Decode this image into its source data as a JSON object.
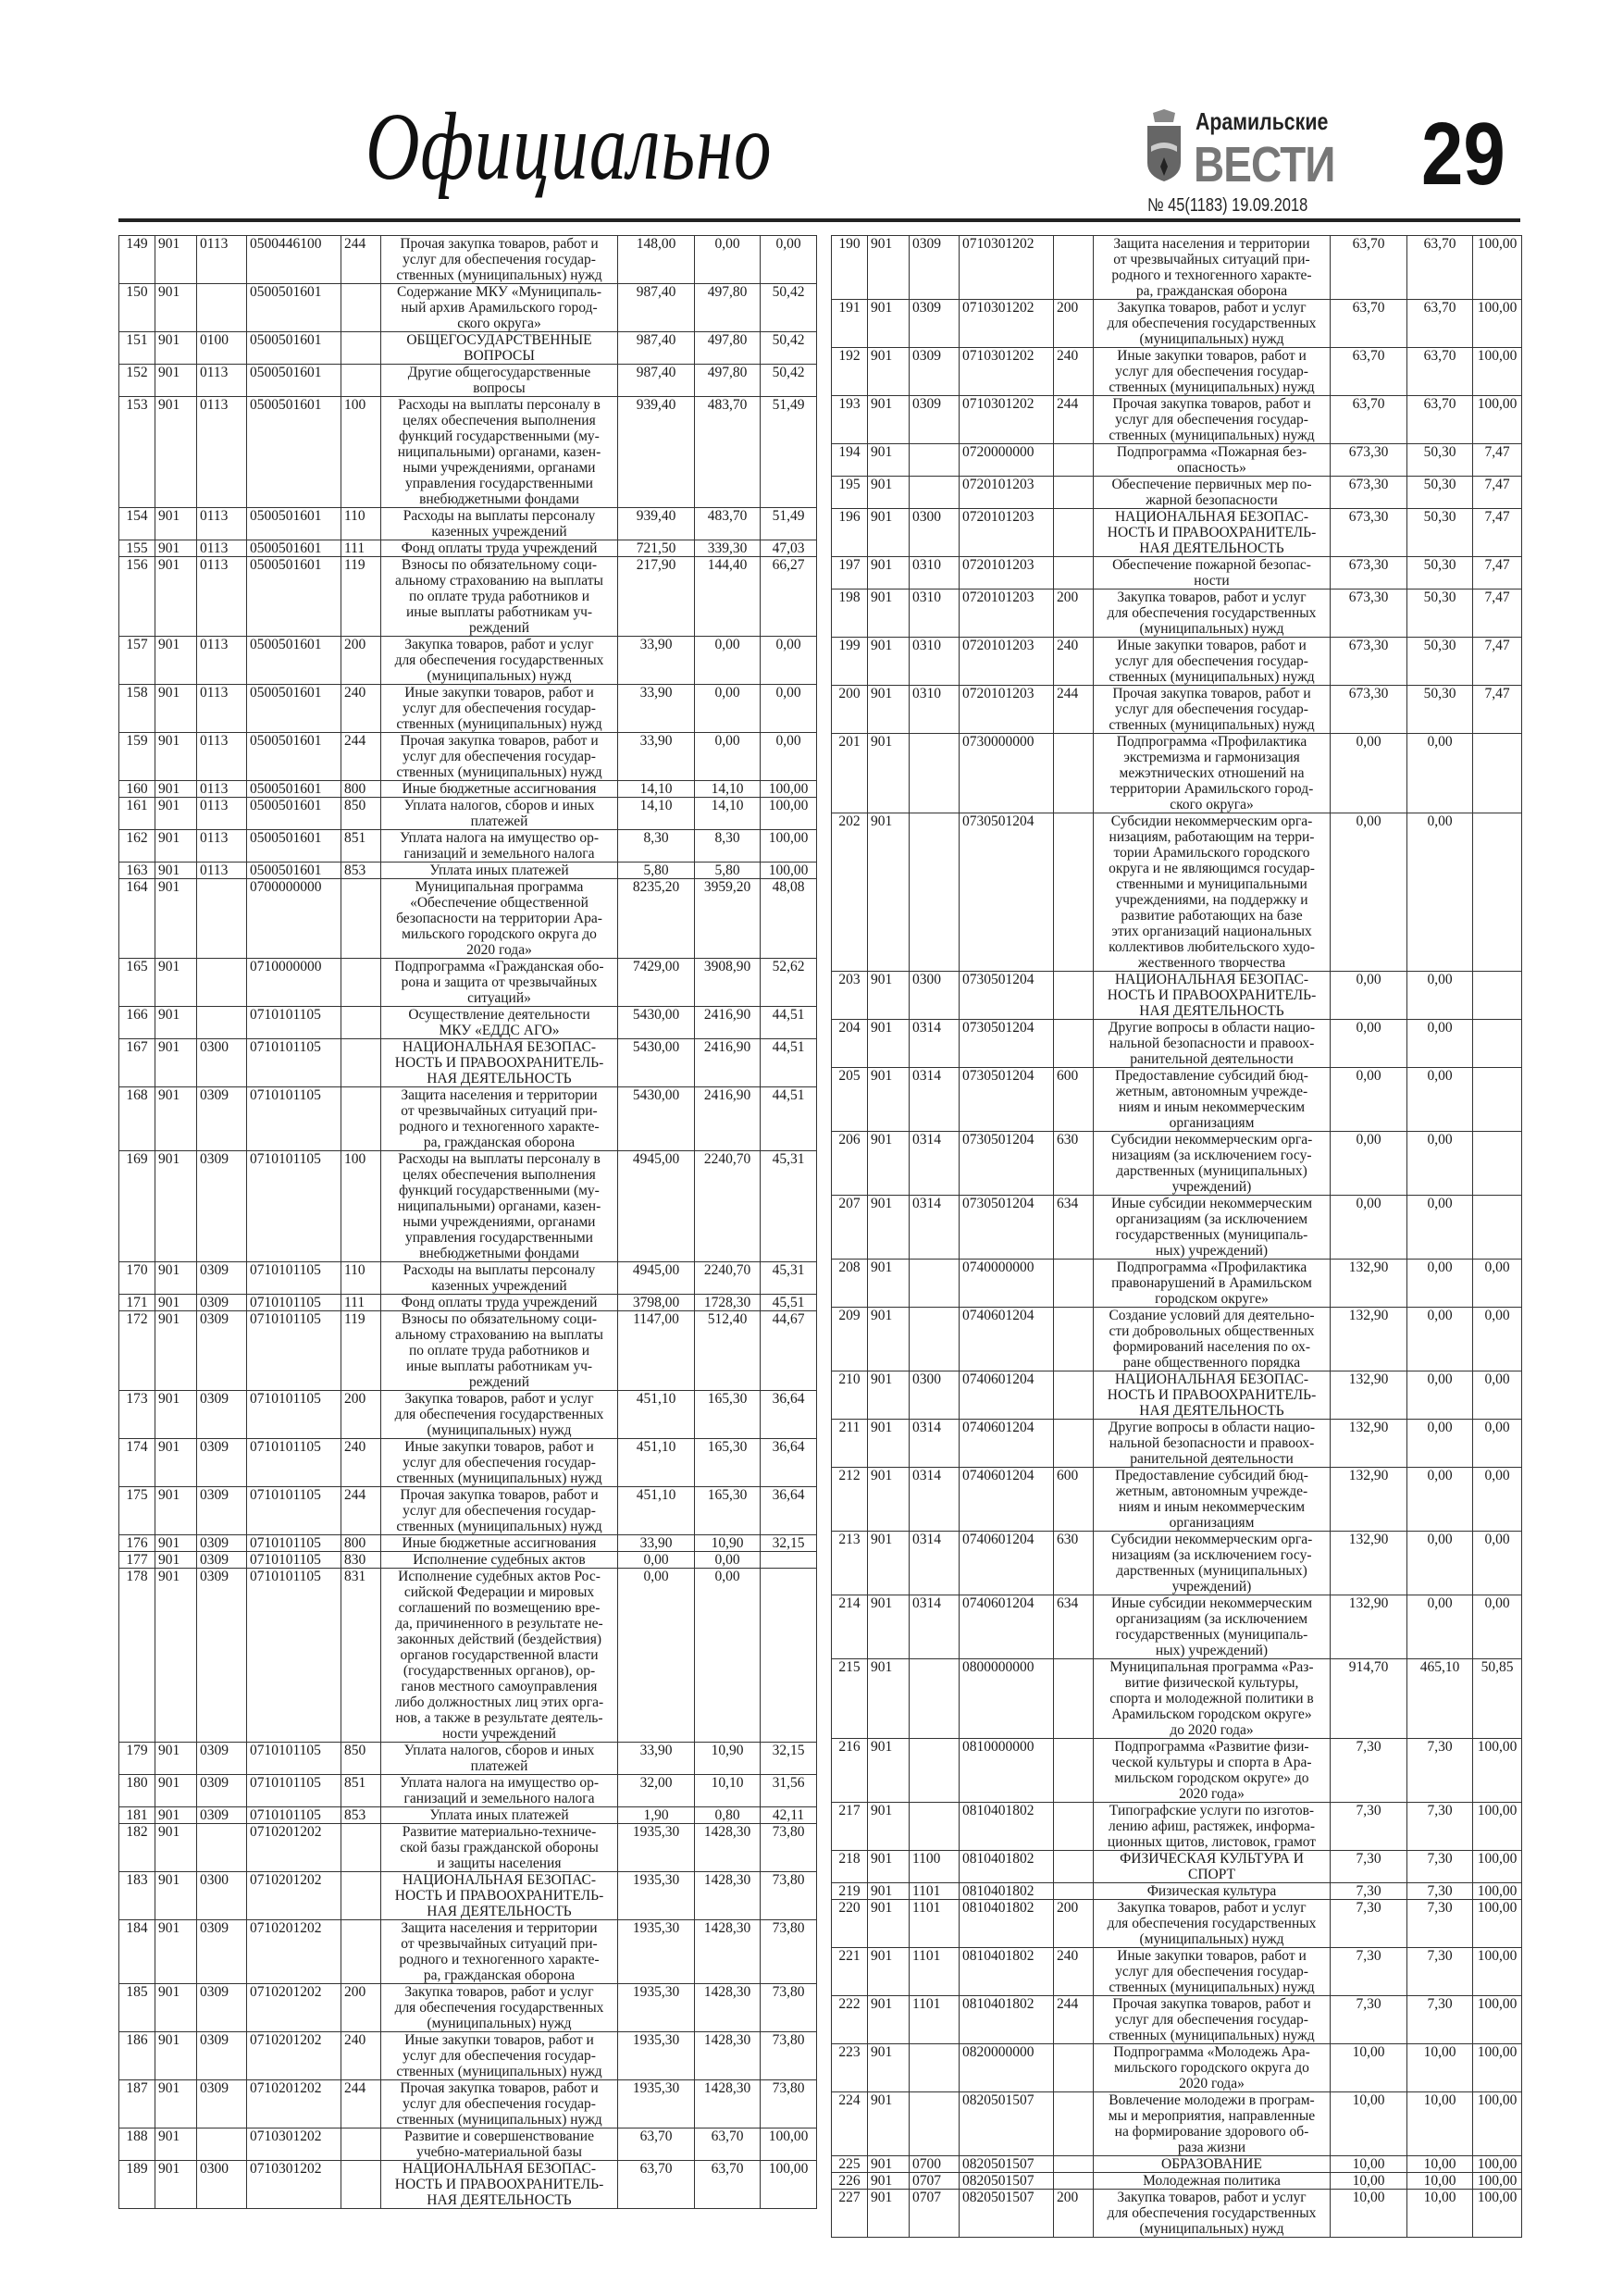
{
  "header": {
    "section_title": "Официально",
    "logo_top": "Арамильские",
    "logo_main": "ВЕСТИ",
    "issue": "№ 45(1183) 19.09.2018",
    "page_number": "29"
  },
  "tables": {
    "left": [
      [
        "149",
        "901",
        "0113",
        "0500446100",
        "244",
        "Прочая закупка товаров, работ и\nуслуг для обеспечения государ-\nственных (муниципальных) нужд",
        "148,00",
        "0,00",
        "0,00"
      ],
      [
        "150",
        "901",
        "",
        "0500501601",
        "",
        "Содержание МКУ «Муниципаль-\nный архив Арамильского город-\nского округа»",
        "987,40",
        "497,80",
        "50,42"
      ],
      [
        "151",
        "901",
        "0100",
        "0500501601",
        "",
        "ОБЩЕГОСУДАРСТВЕННЫЕ\nВОПРОСЫ",
        "987,40",
        "497,80",
        "50,42"
      ],
      [
        "152",
        "901",
        "0113",
        "0500501601",
        "",
        "Другие общегосударственные\nвопросы",
        "987,40",
        "497,80",
        "50,42"
      ],
      [
        "153",
        "901",
        "0113",
        "0500501601",
        "100",
        "Расходы на выплаты персоналу в\nцелях обеспечения выполнения\nфункций государственными (му-\nниципальными) органами, казен-\nными учреждениями, органами\nуправления государственными\nвнебюджетными фондами",
        "939,40",
        "483,70",
        "51,49"
      ],
      [
        "154",
        "901",
        "0113",
        "0500501601",
        "110",
        "Расходы на выплаты персоналу\nказенных учреждений",
        "939,40",
        "483,70",
        "51,49"
      ],
      [
        "155",
        "901",
        "0113",
        "0500501601",
        "111",
        "Фонд оплаты труда учреждений",
        "721,50",
        "339,30",
        "47,03"
      ],
      [
        "156",
        "901",
        "0113",
        "0500501601",
        "119",
        "Взносы по обязательному соци-\nальному страхованию на выплаты\nпо оплате труда работников и\nиные выплаты работникам уч-\nреждений",
        "217,90",
        "144,40",
        "66,27"
      ],
      [
        "157",
        "901",
        "0113",
        "0500501601",
        "200",
        "Закупка товаров, работ и услуг\nдля обеспечения государственных\n(муниципальных) нужд",
        "33,90",
        "0,00",
        "0,00"
      ],
      [
        "158",
        "901",
        "0113",
        "0500501601",
        "240",
        "Иные закупки товаров, работ и\nуслуг для обеспечения государ-\nственных (муниципальных) нужд",
        "33,90",
        "0,00",
        "0,00"
      ],
      [
        "159",
        "901",
        "0113",
        "0500501601",
        "244",
        "Прочая закупка товаров, работ и\nуслуг для обеспечения государ-\nственных (муниципальных) нужд",
        "33,90",
        "0,00",
        "0,00"
      ],
      [
        "160",
        "901",
        "0113",
        "0500501601",
        "800",
        "Иные бюджетные ассигнования",
        "14,10",
        "14,10",
        "100,00"
      ],
      [
        "161",
        "901",
        "0113",
        "0500501601",
        "850",
        "Уплата налогов, сборов и иных\nплатежей",
        "14,10",
        "14,10",
        "100,00"
      ],
      [
        "162",
        "901",
        "0113",
        "0500501601",
        "851",
        "Уплата налога на имущество ор-\nганизаций и земельного налога",
        "8,30",
        "8,30",
        "100,00"
      ],
      [
        "163",
        "901",
        "0113",
        "0500501601",
        "853",
        "Уплата иных платежей",
        "5,80",
        "5,80",
        "100,00"
      ],
      [
        "164",
        "901",
        "",
        "0700000000",
        "",
        "Муниципальная программа\n«Обеспечение общественной\nбезопасности на территории Ара-\nмильского городского округа до\n2020 года»",
        "8235,20",
        "3959,20",
        "48,08"
      ],
      [
        "165",
        "901",
        "",
        "0710000000",
        "",
        "Подпрограмма «Гражданская обо-\nрона и защита от чрезвычайных\nситуаций»",
        "7429,00",
        "3908,90",
        "52,62"
      ],
      [
        "166",
        "901",
        "",
        "0710101105",
        "",
        "Осуществление деятельности\nМКУ «ЕДДС АГО»",
        "5430,00",
        "2416,90",
        "44,51"
      ],
      [
        "167",
        "901",
        "0300",
        "0710101105",
        "",
        "НАЦИОНАЛЬНАЯ БЕЗОПАС-\nНОСТЬ И ПРАВООХРАНИТЕЛЬ-\nНАЯ ДЕЯТЕЛЬНОСТЬ",
        "5430,00",
        "2416,90",
        "44,51"
      ],
      [
        "168",
        "901",
        "0309",
        "0710101105",
        "",
        "Защита населения и территории\nот чрезвычайных ситуаций при-\nродного и техногенного характе-\nра, гражданская оборона",
        "5430,00",
        "2416,90",
        "44,51"
      ],
      [
        "169",
        "901",
        "0309",
        "0710101105",
        "100",
        "Расходы на выплаты персоналу в\nцелях обеспечения выполнения\nфункций государственными (му-\nниципальными) органами, казен-\nными учреждениями, органами\nуправления государственными\nвнебюджетными фондами",
        "4945,00",
        "2240,70",
        "45,31"
      ],
      [
        "170",
        "901",
        "0309",
        "0710101105",
        "110",
        "Расходы на выплаты персоналу\nказенных учреждений",
        "4945,00",
        "2240,70",
        "45,31"
      ],
      [
        "171",
        "901",
        "0309",
        "0710101105",
        "111",
        "Фонд оплаты труда учреждений",
        "3798,00",
        "1728,30",
        "45,51"
      ],
      [
        "172",
        "901",
        "0309",
        "0710101105",
        "119",
        "Взносы по обязательному соци-\nальному страхованию на выплаты\nпо оплате труда работников и\nиные выплаты работникам уч-\nреждений",
        "1147,00",
        "512,40",
        "44,67"
      ],
      [
        "173",
        "901",
        "0309",
        "0710101105",
        "200",
        "Закупка товаров, работ и услуг\nдля обеспечения государственных\n(муниципальных) нужд",
        "451,10",
        "165,30",
        "36,64"
      ],
      [
        "174",
        "901",
        "0309",
        "0710101105",
        "240",
        "Иные закупки товаров, работ и\nуслуг для обеспечения государ-\nственных (муниципальных) нужд",
        "451,10",
        "165,30",
        "36,64"
      ],
      [
        "175",
        "901",
        "0309",
        "0710101105",
        "244",
        "Прочая закупка товаров, работ и\nуслуг для обеспечения государ-\nственных (муниципальных) нужд",
        "451,10",
        "165,30",
        "36,64"
      ],
      [
        "176",
        "901",
        "0309",
        "0710101105",
        "800",
        "Иные бюджетные ассигнования",
        "33,90",
        "10,90",
        "32,15"
      ],
      [
        "177",
        "901",
        "0309",
        "0710101105",
        "830",
        "Исполнение судебных актов",
        "0,00",
        "0,00",
        ""
      ],
      [
        "178",
        "901",
        "0309",
        "0710101105",
        "831",
        "Исполнение судебных актов Рос-\nсийской Федерации и мировых\nсоглашений по возмещению вре-\nда, причиненного в результате не-\nзаконных действий (бездействия)\nорганов государственной власти\n(государственных органов), ор-\nганов местного самоуправления\nлибо должностных лиц этих орга-\nнов, а также в результате деятель-\nности учреждений",
        "0,00",
        "0,00",
        ""
      ],
      [
        "179",
        "901",
        "0309",
        "0710101105",
        "850",
        "Уплата налогов, сборов и иных\nплатежей",
        "33,90",
        "10,90",
        "32,15"
      ],
      [
        "180",
        "901",
        "0309",
        "0710101105",
        "851",
        "Уплата налога на имущество ор-\nганизаций и земельного налога",
        "32,00",
        "10,10",
        "31,56"
      ],
      [
        "181",
        "901",
        "0309",
        "0710101105",
        "853",
        "Уплата иных платежей",
        "1,90",
        "0,80",
        "42,11"
      ],
      [
        "182",
        "901",
        "",
        "0710201202",
        "",
        "Развитие материально-техниче-\nской базы гражданской обороны\nи защиты населения",
        "1935,30",
        "1428,30",
        "73,80"
      ],
      [
        "183",
        "901",
        "0300",
        "0710201202",
        "",
        "НАЦИОНАЛЬНАЯ БЕЗОПАС-\nНОСТЬ И ПРАВООХРАНИТЕЛЬ-\nНАЯ ДЕЯТЕЛЬНОСТЬ",
        "1935,30",
        "1428,30",
        "73,80"
      ],
      [
        "184",
        "901",
        "0309",
        "0710201202",
        "",
        "Защита населения и территории\nот чрезвычайных ситуаций при-\nродного и техногенного характе-\nра, гражданская оборона",
        "1935,30",
        "1428,30",
        "73,80"
      ],
      [
        "185",
        "901",
        "0309",
        "0710201202",
        "200",
        "Закупка товаров, работ и услуг\nдля обеспечения государственных\n(муниципальных) нужд",
        "1935,30",
        "1428,30",
        "73,80"
      ],
      [
        "186",
        "901",
        "0309",
        "0710201202",
        "240",
        "Иные закупки товаров, работ и\nуслуг для обеспечения государ-\nственных (муниципальных) нужд",
        "1935,30",
        "1428,30",
        "73,80"
      ],
      [
        "187",
        "901",
        "0309",
        "0710201202",
        "244",
        "Прочая закупка товаров, работ и\nуслуг для обеспечения государ-\nственных (муниципальных) нужд",
        "1935,30",
        "1428,30",
        "73,80"
      ],
      [
        "188",
        "901",
        "",
        "0710301202",
        "",
        "Развитие и совершенствование\nучебно-материальной базы",
        "63,70",
        "63,70",
        "100,00"
      ],
      [
        "189",
        "901",
        "0300",
        "0710301202",
        "",
        "НАЦИОНАЛЬНАЯ БЕЗОПАС-\nНОСТЬ И ПРАВООХРАНИТЕЛЬ-\nНАЯ ДЕЯТЕЛЬНОСТЬ",
        "63,70",
        "63,70",
        "100,00"
      ]
    ],
    "right": [
      [
        "190",
        "901",
        "0309",
        "0710301202",
        "",
        "Защита населения и территории\nот чрезвычайных ситуаций при-\nродного и техногенного характе-\nра, гражданская оборона",
        "63,70",
        "63,70",
        "100,00"
      ],
      [
        "191",
        "901",
        "0309",
        "0710301202",
        "200",
        "Закупка товаров, работ и услуг\nдля обеспечения государственных\n(муниципальных) нужд",
        "63,70",
        "63,70",
        "100,00"
      ],
      [
        "192",
        "901",
        "0309",
        "0710301202",
        "240",
        "Иные закупки товаров, работ и\nуслуг для обеспечения государ-\nственных (муниципальных) нужд",
        "63,70",
        "63,70",
        "100,00"
      ],
      [
        "193",
        "901",
        "0309",
        "0710301202",
        "244",
        "Прочая закупка товаров, работ и\nуслуг для обеспечения государ-\nственных (муниципальных) нужд",
        "63,70",
        "63,70",
        "100,00"
      ],
      [
        "194",
        "901",
        "",
        "0720000000",
        "",
        "Подпрограмма «Пожарная без-\nопасность»",
        "673,30",
        "50,30",
        "7,47"
      ],
      [
        "195",
        "901",
        "",
        "0720101203",
        "",
        "Обеспечение первичных мер по-\nжарной безопасности",
        "673,30",
        "50,30",
        "7,47"
      ],
      [
        "196",
        "901",
        "0300",
        "0720101203",
        "",
        "НАЦИОНАЛЬНАЯ БЕЗОПАС-\nНОСТЬ И ПРАВООХРАНИТЕЛЬ-\nНАЯ ДЕЯТЕЛЬНОСТЬ",
        "673,30",
        "50,30",
        "7,47"
      ],
      [
        "197",
        "901",
        "0310",
        "0720101203",
        "",
        "Обеспечение пожарной безопас-\nности",
        "673,30",
        "50,30",
        "7,47"
      ],
      [
        "198",
        "901",
        "0310",
        "0720101203",
        "200",
        "Закупка товаров, работ и услуг\nдля обеспечения государственных\n(муниципальных) нужд",
        "673,30",
        "50,30",
        "7,47"
      ],
      [
        "199",
        "901",
        "0310",
        "0720101203",
        "240",
        "Иные закупки товаров, работ и\nуслуг для обеспечения государ-\nственных (муниципальных) нужд",
        "673,30",
        "50,30",
        "7,47"
      ],
      [
        "200",
        "901",
        "0310",
        "0720101203",
        "244",
        "Прочая закупка товаров, работ и\nуслуг для обеспечения государ-\nственных (муниципальных) нужд",
        "673,30",
        "50,30",
        "7,47"
      ],
      [
        "201",
        "901",
        "",
        "0730000000",
        "",
        "Подпрограмма «Профилактика\nэкстремизма и гармонизация\nмежэтнических отношений на\nтерритории Арамильского город-\nского округа»",
        "0,00",
        "0,00",
        ""
      ],
      [
        "202",
        "901",
        "",
        "0730501204",
        "",
        "Субсидии некоммерческим орга-\nнизациям, работающим на терри-\nтории Арамильского городского\nокруга и не являющимся государ-\nственными и муниципальными\nучреждениями, на поддержку и\nразвитие работающих на базе\nэтих организаций национальных\nколлективов любительского худо-\nжественного творчества",
        "0,00",
        "0,00",
        ""
      ],
      [
        "203",
        "901",
        "0300",
        "0730501204",
        "",
        "НАЦИОНАЛЬНАЯ БЕЗОПАС-\nНОСТЬ И ПРАВООХРАНИТЕЛЬ-\nНАЯ ДЕЯТЕЛЬНОСТЬ",
        "0,00",
        "0,00",
        ""
      ],
      [
        "204",
        "901",
        "0314",
        "0730501204",
        "",
        "Другие вопросы в области нацио-\nнальной безопасности и правоох-\nранительной деятельности",
        "0,00",
        "0,00",
        ""
      ],
      [
        "205",
        "901",
        "0314",
        "0730501204",
        "600",
        "Предоставление субсидий бюд-\nжетным, автономным учрежде-\nниям и иным некоммерческим\nорганизациям",
        "0,00",
        "0,00",
        ""
      ],
      [
        "206",
        "901",
        "0314",
        "0730501204",
        "630",
        "Субсидии некоммерческим орга-\nнизациям (за исключением госу-\nдарственных (муниципальных)\nучреждений)",
        "0,00",
        "0,00",
        ""
      ],
      [
        "207",
        "901",
        "0314",
        "0730501204",
        "634",
        "Иные субсидии некоммерческим\nорганизациям (за исключением\nгосударственных (муниципаль-\nных) учреждений)",
        "0,00",
        "0,00",
        ""
      ],
      [
        "208",
        "901",
        "",
        "0740000000",
        "",
        "Подпрограмма «Профилактика\nправонарушений в Арамильском\nгородском округе»",
        "132,90",
        "0,00",
        "0,00"
      ],
      [
        "209",
        "901",
        "",
        "0740601204",
        "",
        "Создание условий для деятельно-\nсти добровольных общественных\nформирований населения по ох-\nране общественного порядка",
        "132,90",
        "0,00",
        "0,00"
      ],
      [
        "210",
        "901",
        "0300",
        "0740601204",
        "",
        "НАЦИОНАЛЬНАЯ БЕЗОПАС-\nНОСТЬ И ПРАВООХРАНИТЕЛЬ-\nНАЯ ДЕЯТЕЛЬНОСТЬ",
        "132,90",
        "0,00",
        "0,00"
      ],
      [
        "211",
        "901",
        "0314",
        "0740601204",
        "",
        "Другие вопросы в области нацио-\nнальной безопасности и правоох-\nранительной деятельности",
        "132,90",
        "0,00",
        "0,00"
      ],
      [
        "212",
        "901",
        "0314",
        "0740601204",
        "600",
        "Предоставление субсидий бюд-\nжетным, автономным учрежде-\nниям и иным некоммерческим\nорганизациям",
        "132,90",
        "0,00",
        "0,00"
      ],
      [
        "213",
        "901",
        "0314",
        "0740601204",
        "630",
        "Субсидии некоммерческим орга-\nнизациям (за исключением госу-\nдарственных (муниципальных)\nучреждений)",
        "132,90",
        "0,00",
        "0,00"
      ],
      [
        "214",
        "901",
        "0314",
        "0740601204",
        "634",
        "Иные субсидии некоммерческим\nорганизациям (за исключением\nгосударственных (муниципаль-\nных) учреждений)",
        "132,90",
        "0,00",
        "0,00"
      ],
      [
        "215",
        "901",
        "",
        "0800000000",
        "",
        "Муниципальная программа «Раз-\nвитие физической культуры,\nспорта и молодежной политики в\nАрамильском городском округе»\nдо 2020 года»",
        "914,70",
        "465,10",
        "50,85"
      ],
      [
        "216",
        "901",
        "",
        "0810000000",
        "",
        "Подпрограмма «Развитие физи-\nческой культуры и спорта в Ара-\nмильском городском округе» до\n2020 года»",
        "7,30",
        "7,30",
        "100,00"
      ],
      [
        "217",
        "901",
        "",
        "0810401802",
        "",
        "Типографские услуги по изготов-\nлению афиш, растяжек, информа-\nционных щитов, листовок, грамот",
        "7,30",
        "7,30",
        "100,00"
      ],
      [
        "218",
        "901",
        "1100",
        "0810401802",
        "",
        "ФИЗИЧЕСКАЯ КУЛЬТУРА И\nСПОРТ",
        "7,30",
        "7,30",
        "100,00"
      ],
      [
        "219",
        "901",
        "1101",
        "0810401802",
        "",
        "Физическая культура",
        "7,30",
        "7,30",
        "100,00"
      ],
      [
        "220",
        "901",
        "1101",
        "0810401802",
        "200",
        "Закупка товаров, работ и услуг\nдля обеспечения государственных\n(муниципальных) нужд",
        "7,30",
        "7,30",
        "100,00"
      ],
      [
        "221",
        "901",
        "1101",
        "0810401802",
        "240",
        "Иные закупки товаров, работ и\nуслуг для обеспечения государ-\nственных (муниципальных) нужд",
        "7,30",
        "7,30",
        "100,00"
      ],
      [
        "222",
        "901",
        "1101",
        "0810401802",
        "244",
        "Прочая закупка товаров, работ и\nуслуг для обеспечения государ-\nственных (муниципальных) нужд",
        "7,30",
        "7,30",
        "100,00"
      ],
      [
        "223",
        "901",
        "",
        "0820000000",
        "",
        "Подпрограмма «Молодежь Ара-\nмильского городского округа до\n2020 года»",
        "10,00",
        "10,00",
        "100,00"
      ],
      [
        "224",
        "901",
        "",
        "0820501507",
        "",
        "Вовлечение молодежи в програм-\nмы и мероприятия, направленные\nна формирование здорового об-\nраза жизни",
        "10,00",
        "10,00",
        "100,00"
      ],
      [
        "225",
        "901",
        "0700",
        "0820501507",
        "",
        "ОБРАЗОВАНИЕ",
        "10,00",
        "10,00",
        "100,00"
      ],
      [
        "226",
        "901",
        "0707",
        "0820501507",
        "",
        "Молодежная политика",
        "10,00",
        "10,00",
        "100,00"
      ],
      [
        "227",
        "901",
        "0707",
        "0820501507",
        "200",
        "Закупка товаров, работ и услуг\nдля обеспечения государственных\n(муниципальных) нужд",
        "10,00",
        "10,00",
        "100,00"
      ]
    ]
  }
}
